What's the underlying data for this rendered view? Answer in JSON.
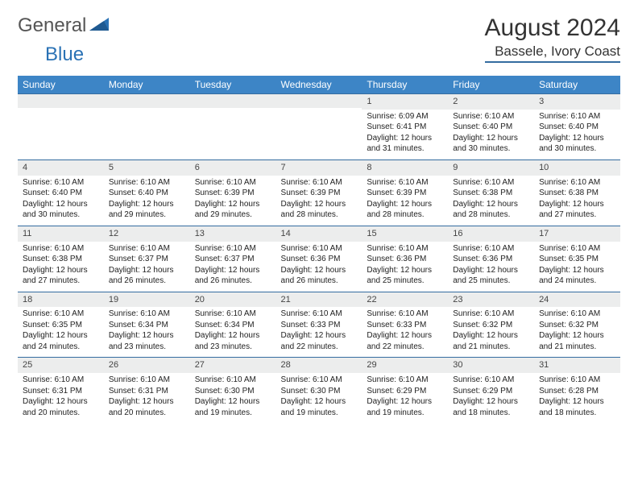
{
  "logo": {
    "word1": "General",
    "word2": "Blue"
  },
  "title": "August 2024",
  "location": "Bassele, Ivory Coast",
  "colors": {
    "header_bg": "#3d85c6",
    "accent": "#346ca0",
    "daynum_bg": "#eceded",
    "logo_gray": "#555555",
    "logo_blue": "#2a72b5"
  },
  "weekdays": [
    "Sunday",
    "Monday",
    "Tuesday",
    "Wednesday",
    "Thursday",
    "Friday",
    "Saturday"
  ],
  "weeks": [
    [
      {
        "empty": true
      },
      {
        "empty": true
      },
      {
        "empty": true
      },
      {
        "empty": true
      },
      {
        "day": "1",
        "sunrise": "Sunrise: 6:09 AM",
        "sunset": "Sunset: 6:41 PM",
        "daylight": "Daylight: 12 hours and 31 minutes."
      },
      {
        "day": "2",
        "sunrise": "Sunrise: 6:10 AM",
        "sunset": "Sunset: 6:40 PM",
        "daylight": "Daylight: 12 hours and 30 minutes."
      },
      {
        "day": "3",
        "sunrise": "Sunrise: 6:10 AM",
        "sunset": "Sunset: 6:40 PM",
        "daylight": "Daylight: 12 hours and 30 minutes."
      }
    ],
    [
      {
        "day": "4",
        "sunrise": "Sunrise: 6:10 AM",
        "sunset": "Sunset: 6:40 PM",
        "daylight": "Daylight: 12 hours and 30 minutes."
      },
      {
        "day": "5",
        "sunrise": "Sunrise: 6:10 AM",
        "sunset": "Sunset: 6:40 PM",
        "daylight": "Daylight: 12 hours and 29 minutes."
      },
      {
        "day": "6",
        "sunrise": "Sunrise: 6:10 AM",
        "sunset": "Sunset: 6:39 PM",
        "daylight": "Daylight: 12 hours and 29 minutes."
      },
      {
        "day": "7",
        "sunrise": "Sunrise: 6:10 AM",
        "sunset": "Sunset: 6:39 PM",
        "daylight": "Daylight: 12 hours and 28 minutes."
      },
      {
        "day": "8",
        "sunrise": "Sunrise: 6:10 AM",
        "sunset": "Sunset: 6:39 PM",
        "daylight": "Daylight: 12 hours and 28 minutes."
      },
      {
        "day": "9",
        "sunrise": "Sunrise: 6:10 AM",
        "sunset": "Sunset: 6:38 PM",
        "daylight": "Daylight: 12 hours and 28 minutes."
      },
      {
        "day": "10",
        "sunrise": "Sunrise: 6:10 AM",
        "sunset": "Sunset: 6:38 PM",
        "daylight": "Daylight: 12 hours and 27 minutes."
      }
    ],
    [
      {
        "day": "11",
        "sunrise": "Sunrise: 6:10 AM",
        "sunset": "Sunset: 6:38 PM",
        "daylight": "Daylight: 12 hours and 27 minutes."
      },
      {
        "day": "12",
        "sunrise": "Sunrise: 6:10 AM",
        "sunset": "Sunset: 6:37 PM",
        "daylight": "Daylight: 12 hours and 26 minutes."
      },
      {
        "day": "13",
        "sunrise": "Sunrise: 6:10 AM",
        "sunset": "Sunset: 6:37 PM",
        "daylight": "Daylight: 12 hours and 26 minutes."
      },
      {
        "day": "14",
        "sunrise": "Sunrise: 6:10 AM",
        "sunset": "Sunset: 6:36 PM",
        "daylight": "Daylight: 12 hours and 26 minutes."
      },
      {
        "day": "15",
        "sunrise": "Sunrise: 6:10 AM",
        "sunset": "Sunset: 6:36 PM",
        "daylight": "Daylight: 12 hours and 25 minutes."
      },
      {
        "day": "16",
        "sunrise": "Sunrise: 6:10 AM",
        "sunset": "Sunset: 6:36 PM",
        "daylight": "Daylight: 12 hours and 25 minutes."
      },
      {
        "day": "17",
        "sunrise": "Sunrise: 6:10 AM",
        "sunset": "Sunset: 6:35 PM",
        "daylight": "Daylight: 12 hours and 24 minutes."
      }
    ],
    [
      {
        "day": "18",
        "sunrise": "Sunrise: 6:10 AM",
        "sunset": "Sunset: 6:35 PM",
        "daylight": "Daylight: 12 hours and 24 minutes."
      },
      {
        "day": "19",
        "sunrise": "Sunrise: 6:10 AM",
        "sunset": "Sunset: 6:34 PM",
        "daylight": "Daylight: 12 hours and 23 minutes."
      },
      {
        "day": "20",
        "sunrise": "Sunrise: 6:10 AM",
        "sunset": "Sunset: 6:34 PM",
        "daylight": "Daylight: 12 hours and 23 minutes."
      },
      {
        "day": "21",
        "sunrise": "Sunrise: 6:10 AM",
        "sunset": "Sunset: 6:33 PM",
        "daylight": "Daylight: 12 hours and 22 minutes."
      },
      {
        "day": "22",
        "sunrise": "Sunrise: 6:10 AM",
        "sunset": "Sunset: 6:33 PM",
        "daylight": "Daylight: 12 hours and 22 minutes."
      },
      {
        "day": "23",
        "sunrise": "Sunrise: 6:10 AM",
        "sunset": "Sunset: 6:32 PM",
        "daylight": "Daylight: 12 hours and 21 minutes."
      },
      {
        "day": "24",
        "sunrise": "Sunrise: 6:10 AM",
        "sunset": "Sunset: 6:32 PM",
        "daylight": "Daylight: 12 hours and 21 minutes."
      }
    ],
    [
      {
        "day": "25",
        "sunrise": "Sunrise: 6:10 AM",
        "sunset": "Sunset: 6:31 PM",
        "daylight": "Daylight: 12 hours and 20 minutes."
      },
      {
        "day": "26",
        "sunrise": "Sunrise: 6:10 AM",
        "sunset": "Sunset: 6:31 PM",
        "daylight": "Daylight: 12 hours and 20 minutes."
      },
      {
        "day": "27",
        "sunrise": "Sunrise: 6:10 AM",
        "sunset": "Sunset: 6:30 PM",
        "daylight": "Daylight: 12 hours and 19 minutes."
      },
      {
        "day": "28",
        "sunrise": "Sunrise: 6:10 AM",
        "sunset": "Sunset: 6:30 PM",
        "daylight": "Daylight: 12 hours and 19 minutes."
      },
      {
        "day": "29",
        "sunrise": "Sunrise: 6:10 AM",
        "sunset": "Sunset: 6:29 PM",
        "daylight": "Daylight: 12 hours and 19 minutes."
      },
      {
        "day": "30",
        "sunrise": "Sunrise: 6:10 AM",
        "sunset": "Sunset: 6:29 PM",
        "daylight": "Daylight: 12 hours and 18 minutes."
      },
      {
        "day": "31",
        "sunrise": "Sunrise: 6:10 AM",
        "sunset": "Sunset: 6:28 PM",
        "daylight": "Daylight: 12 hours and 18 minutes."
      }
    ]
  ]
}
